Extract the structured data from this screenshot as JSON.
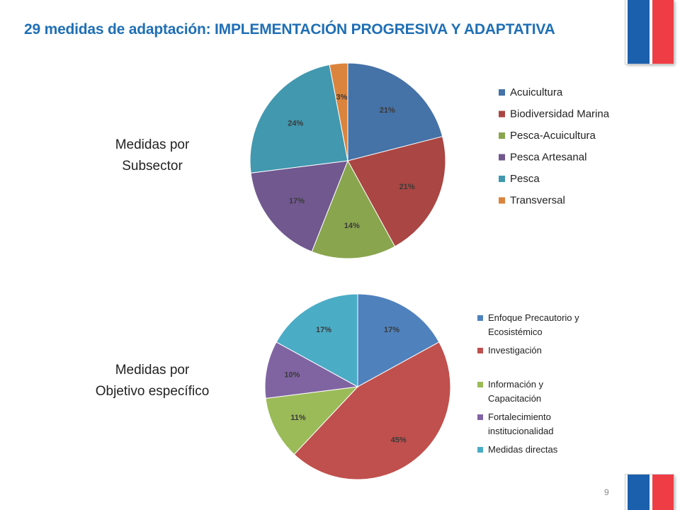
{
  "title": "29 medidas de adaptación: IMPLEMENTACIÓN PROGRESIVA Y ADAPTATIVA",
  "page_number": "9",
  "chart_data": [
    {
      "type": "pie",
      "title": "Medidas por Subsector",
      "title_lines": [
        "Medidas por",
        "Subsector"
      ],
      "legend_position": "right",
      "slices": [
        {
          "label": "Acuicultura",
          "legend_lines": [
            "Acuicultura"
          ],
          "value": 21,
          "data_label": "21%",
          "color": "#4572a7"
        },
        {
          "label": "Biodiversidad Marina",
          "legend_lines": [
            "Biodiversidad Marina"
          ],
          "value": 21,
          "data_label": "21%",
          "color": "#aa4643"
        },
        {
          "label": "Pesca-Acuicultura",
          "legend_lines": [
            "Pesca-Acuicultura"
          ],
          "value": 14,
          "data_label": "14%",
          "color": "#89a54e"
        },
        {
          "label": "Pesca Artesanal",
          "legend_lines": [
            "Pesca Artesanal"
          ],
          "value": 17,
          "data_label": "17%",
          "color": "#71588f"
        },
        {
          "label": "Pesca",
          "legend_lines": [
            "Pesca"
          ],
          "value": 24,
          "data_label": "24%",
          "color": "#4198af"
        },
        {
          "label": "Transversal",
          "legend_lines": [
            "Transversal"
          ],
          "value": 3,
          "data_label": "3%",
          "color": "#db843d"
        }
      ]
    },
    {
      "type": "pie",
      "title": "Medidas por Objetivo específico",
      "title_lines": [
        "Medidas por",
        "Objetivo específico"
      ],
      "legend_position": "right",
      "slices": [
        {
          "label": "Enfoque Precautorio y Ecosistémico",
          "legend_lines": [
            "Enfoque Precautorio y",
            "Ecosistémico"
          ],
          "value": 17,
          "data_label": "17%",
          "color": "#4f81bd"
        },
        {
          "label": "Investigación",
          "legend_lines": [
            "Investigación"
          ],
          "value": 45,
          "data_label": "45%",
          "color": "#c0504d"
        },
        {
          "label": "Información y Capacitación",
          "legend_lines": [
            "Información y",
            "Capacitación"
          ],
          "value": 11,
          "data_label": "11%",
          "color": "#9bbb59"
        },
        {
          "label": "Fortalecimiento institucionalidad",
          "legend_lines": [
            "Fortalecimiento",
            "institucionalidad"
          ],
          "value": 10,
          "data_label": "10%",
          "color": "#8064a2"
        },
        {
          "label": "Medidas directas",
          "legend_lines": [
            "Medidas directas"
          ],
          "value": 17,
          "data_label": "17%",
          "color": "#4bacc6"
        }
      ]
    }
  ]
}
